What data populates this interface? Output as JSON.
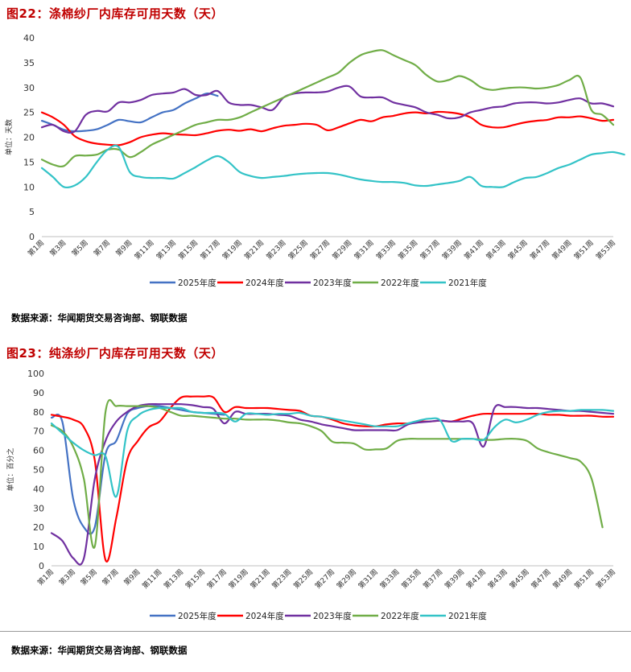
{
  "colors": {
    "title": "#c00000",
    "s2025": "#4472C4",
    "s2024": "#FF0000",
    "s2023": "#7030A0",
    "s2022": "#70AD47",
    "s2021": "#33C3C7"
  },
  "charts": [
    {
      "title": "图22：涤棉纱厂内库存可用天数（天）",
      "source": "数据来源：华闻期货交易咨询部、钢联数据"
    },
    {
      "title": "图23：纯涤纱厂内库存可用天数（天）",
      "source": "数据来源：华闻期货交易咨询部、钢联数据"
    }
  ],
  "chart_data": [
    {
      "type": "line",
      "title": "图22：涤棉纱厂内库存可用天数（天）",
      "ylabel": "单位：天数",
      "ylim": [
        0,
        40
      ],
      "yticks": [
        "0",
        "5",
        "10",
        "15",
        "20",
        "25",
        "30",
        "35",
        "40"
      ],
      "xtick_labels": [
        "第1周",
        "第3周",
        "第5周",
        "第7周",
        "第9周",
        "第11周",
        "第13周",
        "第15周",
        "第17周",
        "第19周",
        "第21周",
        "第23周",
        "第25周",
        "第27周",
        "第29周",
        "第31周",
        "第33周",
        "第35周",
        "第37周",
        "第39周",
        "第41周",
        "第43周",
        "第45周",
        "第47周",
        "第49周",
        "第51周",
        "第53周"
      ],
      "legend": [
        "2025年度",
        "2024年度",
        "2023年度",
        "2022年度",
        "2021年度"
      ],
      "series": [
        {
          "name": "2025年度",
          "key": "s2025",
          "values": [
            23.3,
            22.5,
            21.5,
            21.2,
            21.3,
            21.6,
            22.5,
            23.5,
            23.2,
            23.0,
            24.0,
            25.0,
            25.5,
            26.8,
            27.8,
            28.8,
            28.3
          ]
        },
        {
          "name": "2024年度",
          "key": "s2024",
          "values": [
            25.0,
            24.0,
            22.5,
            20.2,
            19.2,
            18.7,
            18.5,
            18.4,
            19.0,
            20.0,
            20.5,
            20.8,
            20.6,
            20.5,
            20.4,
            20.8,
            21.3,
            21.5,
            21.3,
            21.6,
            21.2,
            21.8,
            22.3,
            22.5,
            22.7,
            22.5,
            21.4,
            22.0,
            22.8,
            23.5,
            23.2,
            24.0,
            24.3,
            24.8,
            25.0,
            24.8,
            25.1,
            25.0,
            24.7,
            24.0,
            22.5,
            22.0,
            22.0,
            22.5,
            23.0,
            23.3,
            23.5,
            24.0,
            24.0,
            24.2,
            23.8,
            23.3,
            23.5
          ]
        },
        {
          "name": "2023年度",
          "key": "s2023",
          "values": [
            22.0,
            22.5,
            21.2,
            21.2,
            24.5,
            25.3,
            25.2,
            27.0,
            27.0,
            27.5,
            28.5,
            28.8,
            29.0,
            29.7,
            28.5,
            28.5,
            29.3,
            27.0,
            26.5,
            26.5,
            26.0,
            25.5,
            28.0,
            28.8,
            29.0,
            29.0,
            29.2,
            30.0,
            30.2,
            28.2,
            28.0,
            28.0,
            27.0,
            26.5,
            26.0,
            25.0,
            24.5,
            23.8,
            24.0,
            25.0,
            25.5,
            26.0,
            26.2,
            26.8,
            27.0,
            27.0,
            26.8,
            27.0,
            27.5,
            27.8,
            26.8,
            26.8,
            26.2
          ]
        },
        {
          "name": "2022年度",
          "key": "s2022",
          "values": [
            15.5,
            14.5,
            14.2,
            16.2,
            16.3,
            16.5,
            17.5,
            17.5,
            16.0,
            17.0,
            18.5,
            19.5,
            20.5,
            21.5,
            22.5,
            23.0,
            23.5,
            23.5,
            24.0,
            25.0,
            26.0,
            27.0,
            28.0,
            29.0,
            30.0,
            31.0,
            32.0,
            33.0,
            35.0,
            36.5,
            37.2,
            37.5,
            36.5,
            35.5,
            34.5,
            32.5,
            31.2,
            31.5,
            32.3,
            31.5,
            30.0,
            29.5,
            29.8,
            30.0,
            30.0,
            29.8,
            30.0,
            30.5,
            31.5,
            32.0,
            25.5,
            24.5,
            22.5
          ]
        },
        {
          "name": "2021年度",
          "key": "s2021",
          "values": [
            13.8,
            12.0,
            10.0,
            10.3,
            12.0,
            15.0,
            17.5,
            18.0,
            13.0,
            12.0,
            11.8,
            11.8,
            11.7,
            12.8,
            14.0,
            15.3,
            16.2,
            15.0,
            13.0,
            12.2,
            11.8,
            12.0,
            12.2,
            12.5,
            12.7,
            12.8,
            12.8,
            12.5,
            12.0,
            11.5,
            11.2,
            11.0,
            11.0,
            10.8,
            10.3,
            10.2,
            10.5,
            10.8,
            11.2,
            12.0,
            10.2,
            10.0,
            10.0,
            11.0,
            11.8,
            12.0,
            12.8,
            13.8,
            14.5,
            15.5,
            16.5,
            16.8,
            17.0,
            16.5
          ]
        }
      ]
    },
    {
      "type": "line",
      "title": "图23：纯涤纱厂内库存可用天数（天）",
      "ylabel": "单位：百分之",
      "ylim": [
        0,
        100
      ],
      "yticks": [
        "0",
        "10",
        "20",
        "30",
        "40",
        "50",
        "60",
        "70",
        "80",
        "90",
        "100"
      ],
      "xtick_labels": [
        "第1周",
        "第3周",
        "第5周",
        "第7周",
        "第9周",
        "第11周",
        "第13周",
        "第15周",
        "第17周",
        "第19周",
        "第21周",
        "第23周",
        "第25周",
        "第27周",
        "第29周",
        "第31周",
        "第33周",
        "第35周",
        "第37周",
        "第39周",
        "第41周",
        "第43周",
        "第45周",
        "第47周",
        "第49周",
        "第51周",
        "第53周"
      ],
      "legend": [
        "2025年度",
        "2024年度",
        "2023年度",
        "2022年度",
        "2021年度"
      ],
      "series": [
        {
          "name": "2025年度",
          "key": "s2025",
          "values": [
            77.0,
            75.0,
            35.0,
            20.0,
            20.0,
            58.0,
            65.0,
            79.0,
            82.0,
            83.0,
            83.0,
            82.0,
            81.0,
            80.0,
            79.5,
            79.0,
            78.5
          ]
        },
        {
          "name": "2024年度",
          "key": "s2024",
          "values": [
            78.5,
            77.5,
            76.0,
            72.0,
            55.0,
            3.0,
            25.0,
            55.0,
            65.0,
            72.0,
            75.0,
            82.0,
            87.5,
            88.0,
            88.0,
            87.5,
            80.0,
            82.5,
            82.0,
            82.0,
            82.0,
            81.5,
            81.0,
            80.5,
            78.0,
            77.5,
            76.0,
            74.0,
            73.0,
            72.5,
            72.5,
            73.5,
            74.0,
            74.0,
            75.0,
            75.0,
            75.5,
            75.0,
            76.5,
            78.0,
            79.0,
            79.0,
            79.0,
            79.0,
            79.0,
            79.0,
            78.5,
            78.5,
            78.0,
            78.0,
            78.0,
            77.5,
            77.5
          ]
        },
        {
          "name": "2023年度",
          "key": "s2023",
          "values": [
            17.0,
            13.0,
            4.0,
            4.0,
            45.0,
            65.0,
            75.0,
            80.0,
            83.0,
            84.0,
            84.0,
            84.0,
            84.0,
            83.5,
            82.5,
            81.5,
            74.0,
            80.0,
            79.0,
            79.0,
            79.0,
            78.5,
            78.0,
            76.0,
            75.0,
            73.5,
            72.5,
            71.5,
            70.5,
            70.5,
            70.5,
            70.5,
            70.5,
            73.5,
            74.5,
            75.0,
            75.5,
            75.0,
            75.0,
            74.0,
            62.0,
            82.0,
            82.5,
            82.5,
            82.0,
            82.0,
            81.5,
            81.0,
            80.5,
            80.5,
            80.0,
            79.5,
            79.0
          ]
        },
        {
          "name": "2022年度",
          "key": "s2022",
          "values": [
            73.0,
            70.0,
            62.0,
            45.0,
            10.0,
            80.0,
            83.0,
            83.0,
            83.0,
            83.0,
            82.0,
            80.0,
            78.0,
            78.0,
            77.5,
            77.0,
            76.5,
            76.5,
            76.0,
            76.0,
            76.0,
            75.5,
            74.5,
            74.0,
            72.5,
            70.0,
            64.5,
            64.0,
            63.5,
            60.5,
            60.5,
            61.0,
            65.0,
            66.0,
            66.0,
            66.0,
            66.0,
            66.0,
            66.0,
            66.0,
            65.5,
            65.5,
            66.0,
            66.0,
            65.0,
            61.0,
            59.0,
            57.5,
            56.0,
            54.0,
            45.0,
            20.0
          ]
        },
        {
          "name": "2021年度",
          "key": "s2021",
          "values": [
            74.0,
            69.0,
            64.0,
            60.0,
            57.5,
            57.0,
            36.0,
            70.0,
            78.0,
            81.0,
            82.0,
            82.0,
            82.0,
            80.0,
            79.5,
            79.5,
            79.0,
            75.0,
            79.0,
            79.0,
            78.5,
            79.0,
            79.0,
            79.5,
            78.0,
            77.5,
            76.5,
            75.5,
            74.5,
            73.5,
            72.5,
            72.5,
            72.5,
            74.0,
            75.5,
            76.5,
            75.5,
            65.0,
            66.0,
            66.0,
            65.5,
            72.0,
            76.0,
            74.5,
            76.0,
            78.5,
            80.0,
            80.5,
            80.5,
            81.0,
            81.0,
            81.0,
            80.5
          ]
        }
      ]
    }
  ]
}
